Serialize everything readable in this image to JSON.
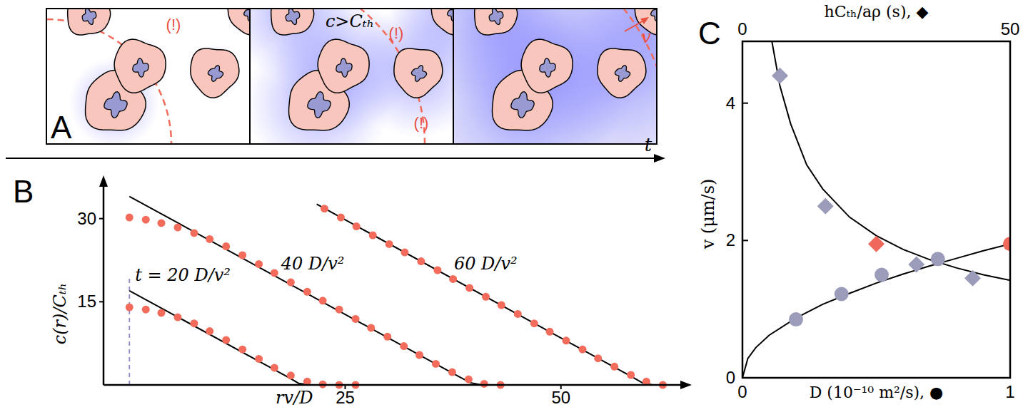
{
  "diagram": {
    "panel": "A",
    "frames": [
      {
        "labels": [
          "(!)"
        ]
      },
      {
        "labels": [
          "c>Cₜₕ",
          "(!)",
          "(!)"
        ]
      },
      {
        "labels": [
          "v"
        ]
      }
    ],
    "time_label": "t"
  },
  "chart_data": [
    {
      "panel": "B",
      "type": "line",
      "x_label": "rv/D",
      "y_label": "c(r)/Cₜₕ",
      "xlim": [
        -3,
        64
      ],
      "ylim": [
        0,
        36
      ],
      "xticks": [
        25,
        50
      ],
      "yticks": [
        15,
        30
      ],
      "series": [
        {
          "type": "scatter",
          "marker": "circle",
          "color": "#f26b5b",
          "x": [
            0,
            1.9,
            3.7,
            5.6,
            7.5,
            9.3,
            11.2,
            13.1,
            15.0,
            16.8,
            18.7,
            20.6,
            22.4,
            24.3,
            26.2
          ],
          "values": [
            14.0,
            13.6,
            13.0,
            12.2,
            11.1,
            9.7,
            8.1,
            6.4,
            4.7,
            3.1,
            1.7,
            0.6,
            0.1,
            0,
            0
          ]
        },
        {
          "type": "scatter",
          "marker": "circle",
          "color": "#f26b5b",
          "x": [
            0,
            1.9,
            3.7,
            5.6,
            7.5,
            9.3,
            11.2,
            13.1,
            15.0,
            16.8,
            18.7,
            20.6,
            22.4,
            24.3,
            26.2,
            28.0,
            29.9,
            31.8,
            33.6,
            35.5,
            37.4,
            39.3,
            41.1,
            43.0
          ],
          "values": [
            30.2,
            29.8,
            29.2,
            28.4,
            27.4,
            26.3,
            25.0,
            23.4,
            21.8,
            20.2,
            18.5,
            16.8,
            15.2,
            13.6,
            11.9,
            10.3,
            8.7,
            7.0,
            5.4,
            3.8,
            2.3,
            1.0,
            0.2,
            0
          ]
        },
        {
          "type": "scatter",
          "marker": "circle",
          "color": "#f26b5b",
          "x": [
            22.6,
            24.5,
            26.3,
            28.2,
            30.1,
            31.9,
            33.8,
            35.7,
            37.5,
            39.4,
            41.3,
            43.1,
            45.0,
            46.9,
            48.7,
            50.6,
            52.5,
            54.3,
            56.2,
            58.1,
            59.9,
            61.8
          ],
          "values": [
            31.8,
            30.2,
            28.6,
            27.0,
            25.4,
            23.9,
            22.3,
            20.7,
            19.1,
            17.5,
            15.9,
            14.4,
            12.8,
            11.1,
            9.6,
            8.0,
            6.4,
            4.8,
            3.3,
            1.8,
            0.6,
            0
          ]
        },
        {
          "type": "line",
          "name": "t = 20 D/v²",
          "color": "#000000",
          "x": [
            0,
            18.5,
            19.6,
            20.8,
            23.5
          ],
          "values": [
            17.0,
            1.3,
            0.3,
            0,
            0
          ]
        },
        {
          "type": "line",
          "name": "40 D/v²",
          "color": "#000000",
          "x": [
            0,
            38.3,
            39.5,
            40.8,
            43.5
          ],
          "values": [
            34.0,
            1.4,
            0.4,
            0,
            0
          ]
        },
        {
          "type": "line",
          "name": "60 D/v²",
          "color": "#000000",
          "x": [
            21.7,
            58.3,
            59.4,
            60.6,
            62.5
          ],
          "values": [
            32.6,
            1.4,
            0.4,
            0,
            0
          ]
        }
      ]
    },
    {
      "panel": "C",
      "type": "scatter",
      "x_label": "D (10⁻¹⁰ m²/s), ●",
      "x2_label": "hCₜₕ/aρ (s), ◆",
      "y_label": "v (μm/s)",
      "xlim": [
        0,
        1
      ],
      "xticks": [
        0,
        1
      ],
      "x2lim": [
        0,
        50
      ],
      "x2ticks": [
        0,
        50
      ],
      "ylim": [
        0,
        4.9
      ],
      "yticks": [
        0,
        2,
        4
      ],
      "series": [
        {
          "type": "scatter",
          "marker": "circle",
          "colors": [
            "#9a9cba",
            "#9a9cba",
            "#9a9cba",
            "#9a9cba",
            "#f0685b"
          ],
          "x": [
            0.2,
            0.37,
            0.52,
            0.73,
            1.0
          ],
          "values": [
            0.85,
            1.22,
            1.5,
            1.73,
            1.95
          ]
        },
        {
          "type": "scatter",
          "marker": "diamond",
          "axis": "x2",
          "colors": [
            "#9a9cba",
            "#9a9cba",
            "#f0685b",
            "#9a9cba",
            "#9a9cba"
          ],
          "x": [
            7,
            15.5,
            25,
            32.5,
            43
          ],
          "values": [
            4.4,
            2.5,
            1.95,
            1.65,
            1.45
          ]
        },
        {
          "type": "line",
          "color": "#000000",
          "x": [
            0,
            0.02,
            0.05,
            0.1,
            0.2,
            0.3,
            0.4,
            0.5,
            0.6,
            0.7,
            0.8,
            0.9,
            1.0
          ],
          "values": [
            0,
            0.28,
            0.44,
            0.62,
            0.87,
            1.07,
            1.23,
            1.38,
            1.51,
            1.63,
            1.74,
            1.85,
            1.95
          ]
        },
        {
          "type": "line",
          "axis": "x2",
          "color": "#000000",
          "x": [
            5.5,
            7,
            9,
            12,
            15,
            20,
            25,
            30,
            35,
            40,
            45,
            50
          ],
          "values": [
            4.9,
            4.25,
            3.7,
            3.1,
            2.75,
            2.34,
            2.07,
            1.87,
            1.72,
            1.6,
            1.5,
            1.42
          ]
        }
      ]
    }
  ]
}
